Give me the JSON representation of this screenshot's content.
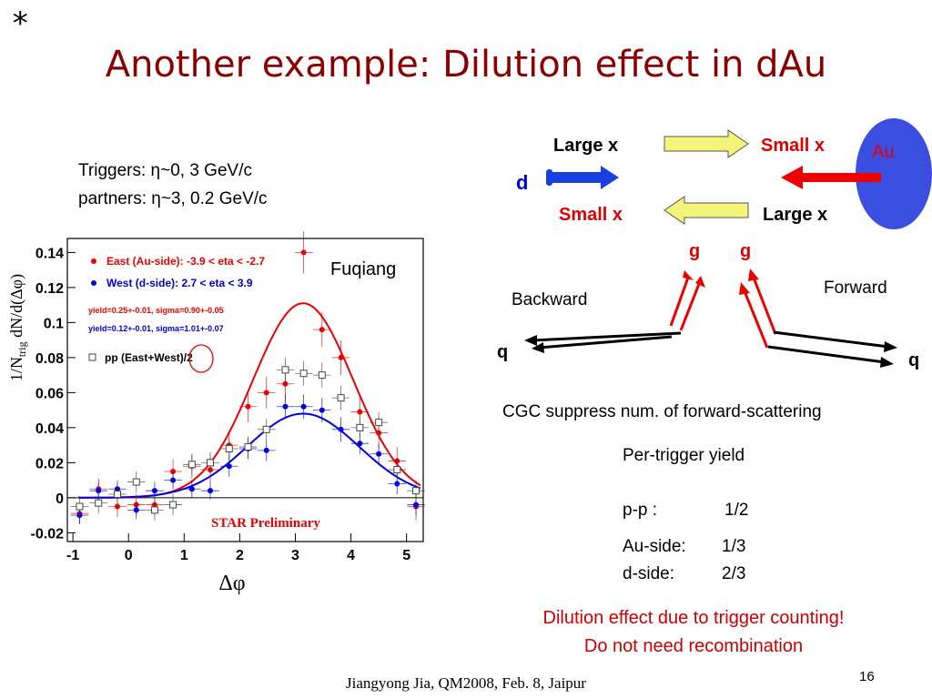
{
  "slide": {
    "star": "*",
    "title": "Another example: Dilution effect in dAu",
    "triggers_label": "Triggers: ",
    "triggers_eta": "η~0, 3 GeV/c",
    "partners_label": "partners: ",
    "partners_eta": "η~3, 0.2 GeV/c",
    "footer": "Jiangyong Jia, QM2008, Feb. 8, Jaipur",
    "page_number": "16"
  },
  "diagram": {
    "top_left": "Large x",
    "top_right": "Small x",
    "bottom_left": "Small x",
    "bottom_right": "Large x",
    "au": "Au",
    "d": "d",
    "g_left": "g",
    "g_right": "g",
    "backward": "Backward",
    "forward": "Forward",
    "q_left": "q",
    "q_right": "q",
    "colors": {
      "au_ellipse": "#3a4fe0",
      "d_arrow": "#1a3fe0",
      "au_arrow": "#ee0000",
      "yellow_arrow": "#f4f47a"
    }
  },
  "notes": {
    "cgc": "CGC suppress num. of forward-scattering",
    "per_trigger": "Per-trigger yield",
    "pp_label": "p-p :",
    "pp_value": "1/2",
    "au_label": "Au-side:",
    "au_value": "1/3",
    "d_label": "d-side:",
    "d_value": "2/3",
    "dilution1": "Dilution effect due to trigger counting!",
    "dilution2": "Do not need recombination"
  },
  "chart_data": {
    "type": "scatter",
    "xlabel": "Δφ",
    "ylabel_prefix": "1/N",
    "ylabel_sub": "trig",
    "ylabel_suffix": " dN/d(Δφ)",
    "xlim": [
      -1.1,
      5.3
    ],
    "ylim": [
      -0.025,
      0.148
    ],
    "x_ticks": [
      -1,
      0,
      1,
      2,
      3,
      4,
      5
    ],
    "x_tick_labels": [
      "-1",
      "0",
      "1",
      "2",
      "3",
      "4",
      "5"
    ],
    "y_ticks": [
      -0.02,
      0,
      0.02,
      0.04,
      0.06,
      0.08,
      0.1,
      0.12,
      0.14
    ],
    "y_tick_labels": [
      "-0.02",
      "0",
      "0.02",
      "0.04",
      "0.06",
      "0.08",
      "0.1",
      "0.12",
      "0.14"
    ],
    "annotations": {
      "fuqiang": "Fuqiang",
      "star_preliminary": "STAR Preliminary",
      "yield_east": "yield=0.25+-0.01, sigma=0.90+-0.05",
      "yield_west": "yield=0.12+-0.01, sigma=1.01+-0.07"
    },
    "x": [
      -0.88,
      -0.54,
      -0.2,
      0.14,
      0.47,
      0.8,
      1.14,
      1.47,
      1.81,
      2.15,
      2.48,
      2.82,
      3.15,
      3.48,
      3.82,
      4.16,
      4.5,
      4.83,
      5.17
    ],
    "series": [
      {
        "name": "East (Au-side): -3.9 < eta < -2.7",
        "color": "#ee0000",
        "marker": "circle",
        "y": [
          -0.009,
          0.005,
          -0.005,
          -0.004,
          -0.004,
          0.015,
          0.018,
          0.016,
          0.03,
          0.052,
          0.06,
          0.065,
          0.14,
          0.096,
          0.08,
          0.049,
          0.037,
          0.021,
          -0.005
        ],
        "yerr": [
          0.006,
          0.006,
          0.006,
          0.006,
          0.006,
          0.007,
          0.007,
          0.007,
          0.008,
          0.009,
          0.009,
          0.01,
          0.012,
          0.01,
          0.01,
          0.009,
          0.009,
          0.008,
          0.008
        ]
      },
      {
        "name": "West (d-side): 2.7 < eta < 3.9",
        "color": "#0000dd",
        "marker": "circle",
        "y": [
          -0.01,
          0.004,
          0.005,
          -0.007,
          0.004,
          0.01,
          0.005,
          0.004,
          0.018,
          0.028,
          0.027,
          0.052,
          0.052,
          0.05,
          0.039,
          0.031,
          0.025,
          0.008,
          -0.004
        ],
        "yerr": [
          0.005,
          0.005,
          0.005,
          0.005,
          0.005,
          0.005,
          0.005,
          0.005,
          0.006,
          0.006,
          0.006,
          0.007,
          0.007,
          0.007,
          0.007,
          0.006,
          0.006,
          0.006,
          0.006
        ]
      },
      {
        "name": "pp (East+West)/2",
        "color": "#444444",
        "marker": "open-square",
        "y": [
          -0.005,
          -0.003,
          0.002,
          0.009,
          -0.007,
          -0.004,
          0.019,
          0.02,
          0.028,
          0.029,
          0.039,
          0.073,
          0.071,
          0.07,
          0.057,
          0.04,
          0.043,
          0.016,
          0.004
        ],
        "yerr": [
          0.006,
          0.006,
          0.006,
          0.006,
          0.006,
          0.006,
          0.006,
          0.006,
          0.006,
          0.006,
          0.006,
          0.007,
          0.007,
          0.007,
          0.007,
          0.006,
          0.006,
          0.006,
          0.006
        ]
      }
    ],
    "fits": [
      {
        "color": "#ee0000",
        "amplitude": 0.111,
        "center": 3.14,
        "sigma": 0.9
      },
      {
        "color": "#0000dd",
        "amplitude": 0.048,
        "center": 3.14,
        "sigma": 1.01
      }
    ]
  }
}
